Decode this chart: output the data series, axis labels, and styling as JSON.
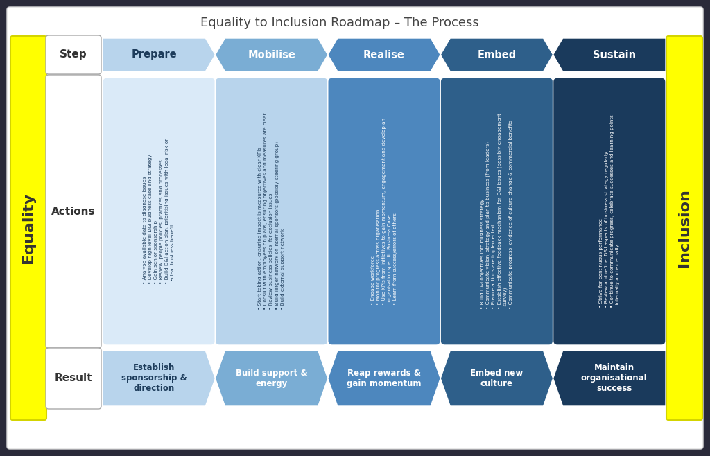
{
  "title": "Equality to Inclusion Roadmap – The Process",
  "steps": [
    "Prepare",
    "Mobilise",
    "Realise",
    "Embed",
    "Sustain"
  ],
  "step_colors": [
    "#b8d4ec",
    "#7aadd4",
    "#4d87be",
    "#2e5f8a",
    "#1a3a5c"
  ],
  "step_text_colors": [
    "#1e3d5c",
    "#ffffff",
    "#ffffff",
    "#ffffff",
    "#ffffff"
  ],
  "results": [
    "Establish\nsponsorship &\ndirection",
    "Build support &\nenergy",
    "Reap rewards &\ngain momentum",
    "Embed new\nculture",
    "Maintain\norganisational\nsuccess"
  ],
  "result_colors": [
    "#b8d4ec",
    "#7aadd4",
    "#4d87be",
    "#2e5f8a",
    "#1a3a5c"
  ],
  "result_text_colors": [
    "#1e3d5c",
    "#ffffff",
    "#ffffff",
    "#ffffff",
    "#ffffff"
  ],
  "actions": [
    "• Analyse available data to diagnose issues\n• Develop high level D&I business case and strategy\n• Gain senior sponsorship\n• Review  people policies, practices and processes\n• Build D&I action plan, prioritising issues with legal risk or\n  •clear business benefit",
    "• Start taking action, ensuring impact is measured with clear KPIs\n• Consult with employees on plans, ensuring objectives and measures are clear\n• Review business policies  for exclusion issues\n• Build larger network of internal sponsors (possibly steering group)\n• Build external support network",
    "• Engage workforce\n• Monitor progress across organisation\n• Use KPIs from initiatives to gain momentum, engagement and develop an\n  organisation specific Business Case\n• Learn from success/errors of others",
    "• Build D&I objectives into business strategy\n• Communicate vision, strategy and plan to business (from leaders)\n• Ensure actions are implemented\n• Establish effective feedback mechanism for D&I issues (possibly engagement\n  survey)\n• Communicate progress, evidence of culture change & commercial benefits",
    "• Strive for continuous performance\n• Review and refine  D&I aspects of business strategy regularly\n• Continue to communicate progress, celebrate successes and learning points\n  internally and externally"
  ],
  "action_colors": [
    "#daeaf8",
    "#b8d4ec",
    "#4d87be",
    "#2e5f8a",
    "#1a3a5c"
  ],
  "action_text_colors": [
    "#1e3d5c",
    "#1e3d5c",
    "#ffffff",
    "#ffffff",
    "#ffffff"
  ],
  "yellow": "#ffff00",
  "outer_bg": "#2a2a3a",
  "inner_bg": "#ffffff",
  "label_color": "#333333",
  "title_color": "#444444",
  "enei_color": "#1a3a5c"
}
